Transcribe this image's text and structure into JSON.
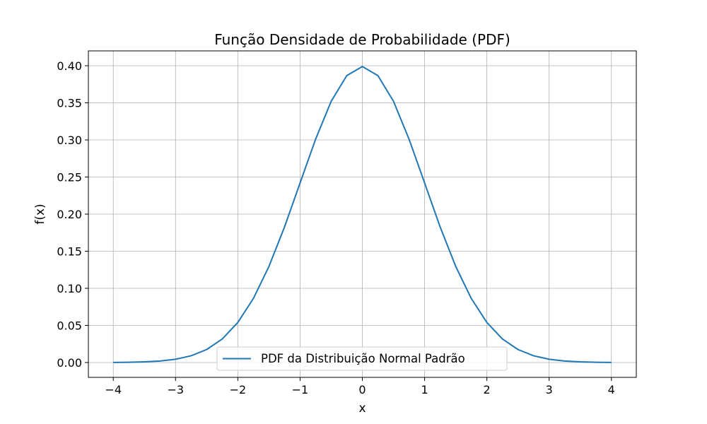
{
  "chart_data": {
    "type": "line",
    "title": "Função Densidade de Probabilidade (PDF)",
    "xlabel": "x",
    "ylabel": "f(x)",
    "xlim": [
      -4.4,
      4.4
    ],
    "ylim": [
      -0.02,
      0.42
    ],
    "x_ticks": [
      -4,
      -3,
      -2,
      -1,
      0,
      1,
      2,
      3,
      4
    ],
    "x_tick_labels": [
      "−4",
      "−3",
      "−2",
      "−1",
      "0",
      "1",
      "2",
      "3",
      "4"
    ],
    "y_ticks": [
      0.0,
      0.05,
      0.1,
      0.15,
      0.2,
      0.25,
      0.3,
      0.35,
      0.4
    ],
    "y_tick_labels": [
      "0.00",
      "0.05",
      "0.10",
      "0.15",
      "0.20",
      "0.25",
      "0.30",
      "0.35",
      "0.40"
    ],
    "grid": true,
    "legend_position": "lower-center",
    "series": [
      {
        "name": "PDF da Distribuição Normal Padrão",
        "color": "#1f77b4",
        "x": [
          -4.0,
          -3.75,
          -3.5,
          -3.25,
          -3.0,
          -2.75,
          -2.5,
          -2.25,
          -2.0,
          -1.75,
          -1.5,
          -1.25,
          -1.0,
          -0.75,
          -0.5,
          -0.25,
          0.0,
          0.25,
          0.5,
          0.75,
          1.0,
          1.25,
          1.5,
          1.75,
          2.0,
          2.25,
          2.5,
          2.75,
          3.0,
          3.25,
          3.5,
          3.75,
          4.0
        ],
        "y": [
          0.0001,
          0.0004,
          0.0009,
          0.002,
          0.0044,
          0.0091,
          0.0175,
          0.0317,
          0.054,
          0.0863,
          0.1295,
          0.1826,
          0.242,
          0.3011,
          0.3521,
          0.3867,
          0.3989,
          0.3867,
          0.3521,
          0.3011,
          0.242,
          0.1826,
          0.1295,
          0.0863,
          0.054,
          0.0317,
          0.0175,
          0.0091,
          0.0044,
          0.002,
          0.0009,
          0.0004,
          0.0001
        ]
      }
    ]
  }
}
